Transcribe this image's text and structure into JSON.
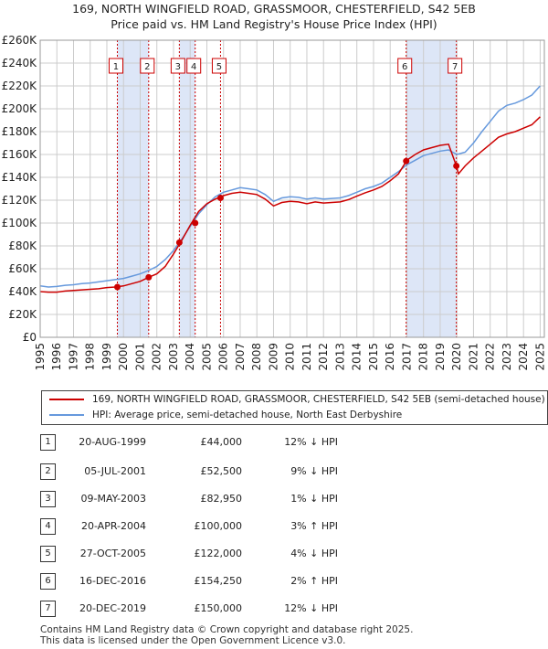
{
  "title_line1": "169, NORTH WINGFIELD ROAD, GRASSMOOR, CHESTERFIELD, S42 5EB",
  "title_line2": "Price paid vs. HM Land Registry's House Price Index (HPI)",
  "colors": {
    "property": "#cc0000",
    "hpi": "#6699dd",
    "shade": "#dde6f7",
    "marker": "#cc0000"
  },
  "legend": {
    "property_label": "169, NORTH WINGFIELD ROAD, GRASSMOOR, CHESTERFIELD, S42 5EB (semi-detached house)",
    "hpi_label": "HPI: Average price, semi-detached house, North East Derbyshire"
  },
  "chart_data": {
    "type": "line",
    "xlim": [
      1995,
      2025.25
    ],
    "ylim": [
      0,
      260000
    ],
    "y_ticks": [
      0,
      20000,
      40000,
      60000,
      80000,
      100000,
      120000,
      140000,
      160000,
      180000,
      200000,
      220000,
      240000,
      260000
    ],
    "y_tick_labels": [
      "£0",
      "£20K",
      "£40K",
      "£60K",
      "£80K",
      "£100K",
      "£120K",
      "£140K",
      "£160K",
      "£180K",
      "£200K",
      "£220K",
      "£240K",
      "£260K"
    ],
    "x_tick_labels": [
      "1995",
      "1996",
      "1997",
      "1998",
      "1999",
      "2000",
      "2001",
      "2002",
      "2003",
      "2004",
      "2005",
      "2006",
      "2007",
      "2008",
      "2009",
      "2010",
      "2011",
      "2012",
      "2013",
      "2014",
      "2015",
      "2016",
      "2017",
      "2018",
      "2019",
      "2020",
      "2021",
      "2022",
      "2023",
      "2024",
      "2025"
    ],
    "grid": true,
    "shaded_periods": [
      [
        1999.63,
        2001.51
      ],
      [
        2003.35,
        2004.3
      ],
      [
        2016.96,
        2019.97
      ]
    ],
    "hpi": {
      "name": "HPI: Average price, semi-detached house, North East Derbyshire",
      "x": [
        1995,
        1995.5,
        1996,
        1996.5,
        1997,
        1997.5,
        1998,
        1998.5,
        1999,
        1999.5,
        2000,
        2000.5,
        2001,
        2001.5,
        2002,
        2002.5,
        2003,
        2003.5,
        2004,
        2004.5,
        2005,
        2005.5,
        2006,
        2006.5,
        2007,
        2007.5,
        2008,
        2008.5,
        2009,
        2009.5,
        2010,
        2010.5,
        2011,
        2011.5,
        2012,
        2012.5,
        2013,
        2013.5,
        2014,
        2014.5,
        2015,
        2015.5,
        2016,
        2016.5,
        2017,
        2017.5,
        2018,
        2018.5,
        2019,
        2019.5,
        2020,
        2020.5,
        2021,
        2021.5,
        2022,
        2022.5,
        2023,
        2023.5,
        2024,
        2024.5,
        2025
      ],
      "values": [
        45000,
        44000,
        44500,
        45500,
        46000,
        47000,
        47500,
        48500,
        49500,
        50500,
        51500,
        53500,
        55500,
        58500,
        62000,
        68000,
        76000,
        86000,
        97000,
        108000,
        116000,
        123000,
        127000,
        129000,
        131000,
        130000,
        129000,
        125000,
        119000,
        122000,
        123000,
        122500,
        121000,
        122000,
        121000,
        121500,
        122000,
        124000,
        127000,
        130000,
        132000,
        135000,
        140000,
        145000,
        151000,
        155000,
        159000,
        161000,
        163000,
        164000,
        160000,
        162000,
        170000,
        180000,
        189000,
        198000,
        203000,
        205000,
        208000,
        212000,
        220000
      ]
    },
    "property": {
      "name": "169, NORTH WINGFIELD ROAD, GRASSMOOR, CHESTERFIELD, S42 5EB (semi-detached house)",
      "x": [
        1995,
        1995.5,
        1996,
        1996.5,
        1997,
        1997.5,
        1998,
        1998.5,
        1999,
        1999.5,
        2000,
        2000.5,
        2001,
        2001.5,
        2002,
        2002.5,
        2003,
        2003.5,
        2004,
        2004.5,
        2005,
        2005.5,
        2006,
        2006.5,
        2007,
        2007.5,
        2008,
        2008.5,
        2009,
        2009.5,
        2010,
        2010.5,
        2011,
        2011.5,
        2012,
        2012.5,
        2013,
        2013.5,
        2014,
        2014.5,
        2015,
        2015.5,
        2016,
        2016.5,
        2017,
        2017.5,
        2018,
        2018.5,
        2019,
        2019.5,
        2019.97,
        2020.1,
        2020.5,
        2021,
        2021.5,
        2022,
        2022.5,
        2023,
        2023.5,
        2024,
        2024.5,
        2025
      ],
      "values": [
        40000,
        39500,
        39500,
        40500,
        41000,
        41500,
        42000,
        42500,
        43500,
        44000,
        45000,
        47000,
        49000,
        52500,
        55500,
        62000,
        73000,
        85000,
        98000,
        110000,
        117000,
        121000,
        124000,
        126000,
        127000,
        126000,
        125000,
        121000,
        115000,
        118000,
        119000,
        118500,
        117000,
        118500,
        117500,
        118000,
        118500,
        120500,
        123500,
        126500,
        129000,
        132000,
        137000,
        143000,
        155000,
        160000,
        164000,
        166000,
        168000,
        169000,
        150000,
        143000,
        150000,
        157000,
        163000,
        169000,
        175000,
        178000,
        180000,
        183000,
        186000,
        193000
      ]
    },
    "sales": [
      {
        "label": "1",
        "x": 1999.63,
        "price": 44000
      },
      {
        "label": "2",
        "x": 2001.51,
        "price": 52500
      },
      {
        "label": "3",
        "x": 2003.35,
        "price": 82950
      },
      {
        "label": "4",
        "x": 2004.3,
        "price": 100000
      },
      {
        "label": "5",
        "x": 2005.82,
        "price": 122000
      },
      {
        "label": "6",
        "x": 2016.96,
        "price": 154250
      },
      {
        "label": "7",
        "x": 2019.97,
        "price": 150000
      }
    ]
  },
  "transactions": [
    {
      "num": "1",
      "date": "20-AUG-1999",
      "price": "£44,000",
      "diff": "12% ↓ HPI"
    },
    {
      "num": "2",
      "date": "05-JUL-2001",
      "price": "£52,500",
      "diff": "9% ↓ HPI"
    },
    {
      "num": "3",
      "date": "09-MAY-2003",
      "price": "£82,950",
      "diff": "1% ↓ HPI"
    },
    {
      "num": "4",
      "date": "20-APR-2004",
      "price": "£100,000",
      "diff": "3% ↑ HPI"
    },
    {
      "num": "5",
      "date": "27-OCT-2005",
      "price": "£122,000",
      "diff": "4% ↓ HPI"
    },
    {
      "num": "6",
      "date": "16-DEC-2016",
      "price": "£154,250",
      "diff": "2% ↑ HPI"
    },
    {
      "num": "7",
      "date": "20-DEC-2019",
      "price": "£150,000",
      "diff": "12% ↓ HPI"
    }
  ],
  "footer_line1": "Contains HM Land Registry data © Crown copyright and database right 2025.",
  "footer_line2": "This data is licensed under the Open Government Licence v3.0."
}
